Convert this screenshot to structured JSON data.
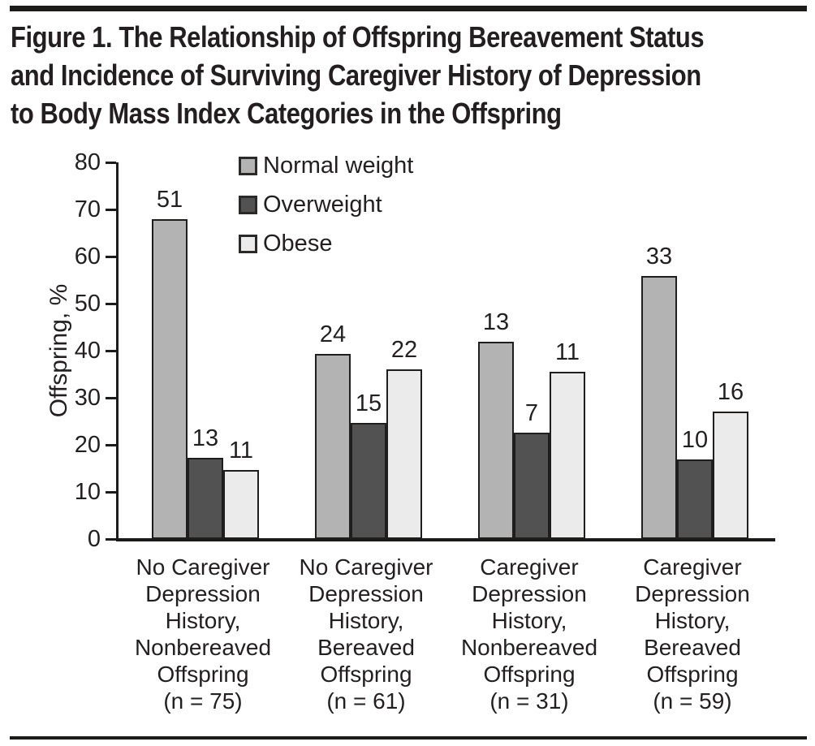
{
  "figure": {
    "title_lines": [
      "Figure 1. The Relationship of Offspring Bereavement Status",
      "and Incidence of Surviving Caregiver History of Depression",
      "to Body Mass Index Categories in the Offspring"
    ]
  },
  "chart_data": {
    "type": "bar",
    "title": "Figure 1. The Relationship of Offspring Bereavement Status and Incidence of Surviving Caregiver History of Depression to Body Mass Index Categories in the Offspring",
    "xlabel": "",
    "ylabel": "Offspring, %",
    "ylim": [
      0,
      80
    ],
    "yticks": [
      0,
      10,
      20,
      30,
      40,
      50,
      60,
      70,
      80
    ],
    "grid": false,
    "legend_position": "top-inside-left",
    "bar_value_labels_show": "counts",
    "categories": [
      "No Caregiver\nDepression\nHistory,\nNonbereaved\nOffspring\n(n = 75)",
      "No Caregiver\nDepression\nHistory,\nBereaved\nOffspring\n(n = 61)",
      "Caregiver\nDepression\nHistory,\nNonbereaved\nOffspring\n(n = 31)",
      "Caregiver\nDepression\nHistory,\nBereaved\nOffspring\n(n = 59)"
    ],
    "group_ns": [
      75,
      61,
      31,
      59
    ],
    "series": [
      {
        "name": "Normal weight",
        "color": "#b3b3b3",
        "counts": [
          51,
          24,
          13,
          33
        ],
        "percent_values": [
          68.0,
          39.3,
          41.9,
          55.9
        ]
      },
      {
        "name": "Overweight",
        "color": "#525252",
        "counts": [
          13,
          15,
          7,
          10
        ],
        "percent_values": [
          17.3,
          24.6,
          22.6,
          16.9
        ]
      },
      {
        "name": "Obese",
        "color": "#ebebeb",
        "counts": [
          11,
          22,
          11,
          16
        ],
        "percent_values": [
          14.7,
          36.1,
          35.5,
          27.1
        ]
      }
    ]
  },
  "colors": {
    "rule": "#1c1b1a",
    "axis": "#1b1b1a",
    "bar_border": "#1f1e1d",
    "text": "#231f20"
  }
}
